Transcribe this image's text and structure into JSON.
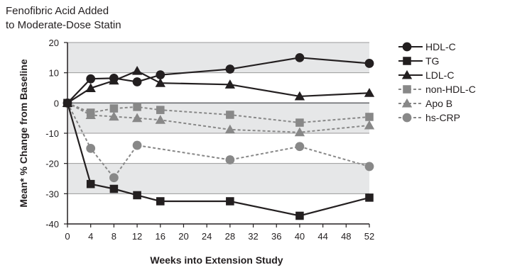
{
  "chart_data": {
    "type": "line",
    "title_lines": [
      "Fenofibric Acid Added",
      "to Moderate-Dose Statin"
    ],
    "xlabel": "Weeks into Extension Study",
    "ylabel": "Mean* % Change from Baseline",
    "xlim": [
      0,
      52
    ],
    "ylim": [
      -40,
      20
    ],
    "x_ticks": [
      0,
      4,
      8,
      12,
      16,
      20,
      24,
      28,
      32,
      36,
      40,
      44,
      48,
      52
    ],
    "y_ticks": [
      20,
      10,
      0,
      -10,
      -20,
      -30,
      -40
    ],
    "shaded_bands": [
      [
        10,
        20
      ],
      [
        -10,
        0
      ],
      [
        -30,
        -20
      ]
    ],
    "legend_position": "right",
    "series": [
      {
        "name": "HDL-C",
        "marker": "circle",
        "color": "#231f20",
        "dashed": false,
        "x": [
          0,
          4,
          8,
          12,
          16,
          28,
          40,
          52
        ],
        "y": [
          0,
          8,
          8.2,
          7,
          9.3,
          11.2,
          15,
          13.1
        ]
      },
      {
        "name": "TG",
        "marker": "square",
        "color": "#231f20",
        "dashed": false,
        "x": [
          0,
          4,
          8,
          12,
          16,
          28,
          40,
          52
        ],
        "y": [
          0,
          -26.8,
          -28.4,
          -30.5,
          -32.5,
          -32.5,
          -37.3,
          -31.3
        ]
      },
      {
        "name": "LDL-C",
        "marker": "triangle",
        "color": "#231f20",
        "dashed": false,
        "x": [
          0,
          4,
          8,
          12,
          16,
          28,
          40,
          52
        ],
        "y": [
          0,
          4.9,
          7.4,
          10.6,
          6.6,
          6.1,
          2.2,
          3.3
        ]
      },
      {
        "name": "non-HDL-C",
        "marker": "square",
        "color": "#888888",
        "dashed": true,
        "x": [
          0,
          4,
          8,
          12,
          16,
          28,
          40,
          52
        ],
        "y": [
          0,
          -3.2,
          -1.8,
          -1.3,
          -2.3,
          -3.9,
          -6.5,
          -4.6
        ]
      },
      {
        "name": "Apo B",
        "marker": "triangle",
        "color": "#888888",
        "dashed": true,
        "x": [
          0,
          4,
          8,
          12,
          16,
          28,
          40,
          52
        ],
        "y": [
          0,
          -4,
          -4.5,
          -5,
          -5.6,
          -8.8,
          -9.7,
          -7.4
        ]
      },
      {
        "name": "hs-CRP",
        "marker": "circle",
        "color": "#888888",
        "dashed": true,
        "x": [
          0,
          4,
          8,
          12,
          28,
          40,
          52
        ],
        "y": [
          0,
          -15,
          -24.7,
          -14,
          -18.8,
          -14.4,
          -21
        ]
      }
    ]
  }
}
